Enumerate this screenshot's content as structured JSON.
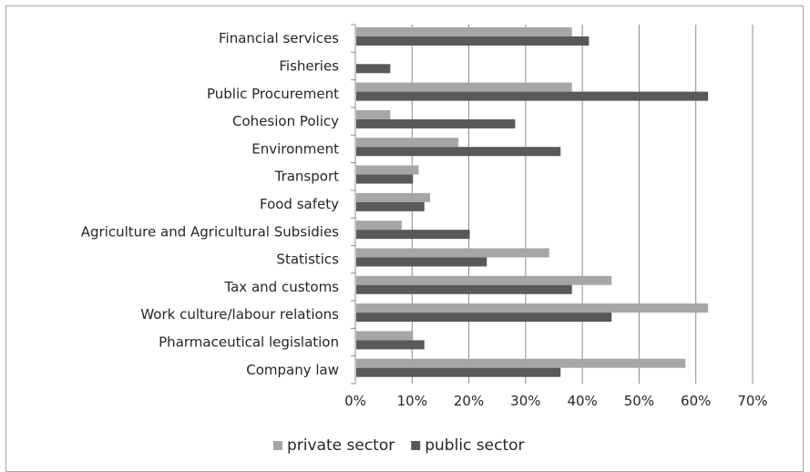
{
  "chart_data": {
    "type": "bar",
    "orientation": "horizontal",
    "categories": [
      "Financial services",
      "Fisheries",
      "Public Procurement",
      "Cohesion Policy",
      "Environment",
      "Transport",
      "Food safety",
      "Agriculture and Agricultural Subsidies",
      "Statistics",
      "Tax and customs",
      "Work culture/labour relations",
      "Pharmaceutical legislation",
      "Company law"
    ],
    "series": [
      {
        "name": "private sector",
        "color": "#a6a6a6",
        "values": [
          0.38,
          0,
          0.38,
          0.06,
          0.18,
          0.11,
          0.13,
          0.08,
          0.34,
          0.45,
          0.62,
          0.1,
          0.58
        ]
      },
      {
        "name": "public sector",
        "color": "#595959",
        "values": [
          0.41,
          0.06,
          0.62,
          0.28,
          0.36,
          0.1,
          0.12,
          0.2,
          0.23,
          0.38,
          0.45,
          0.12,
          0.36
        ]
      }
    ],
    "xlim": [
      0,
      0.7
    ],
    "xticks": [
      "0%",
      "10%",
      "20%",
      "30%",
      "40%",
      "50%",
      "60%",
      "70%"
    ],
    "grid": "vertical",
    "legend": "bottom",
    "title": "",
    "xlabel": "",
    "ylabel": ""
  }
}
